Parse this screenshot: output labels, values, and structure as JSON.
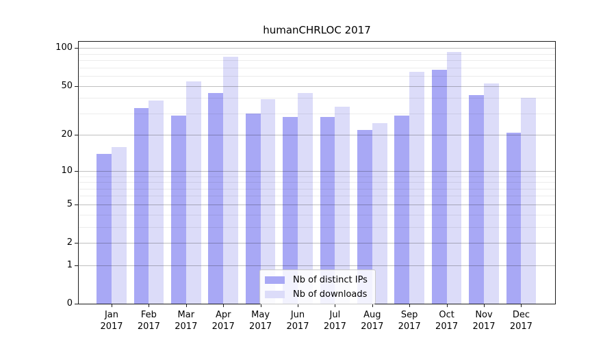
{
  "chart_data": {
    "type": "bar",
    "title": "humanCHRLOC 2017",
    "categories": [
      "Jan 2017",
      "Feb 2017",
      "Mar 2017",
      "Apr 2017",
      "May 2017",
      "Jun 2017",
      "Jul 2017",
      "Aug 2017",
      "Sep 2017",
      "Oct 2017",
      "Nov 2017",
      "Dec 2017"
    ],
    "series": [
      {
        "name": "Nb of distinct IPs",
        "color": "#a8a8f5",
        "values": [
          14,
          33,
          29,
          44,
          30,
          28,
          28,
          22,
          29,
          67,
          42,
          21
        ]
      },
      {
        "name": "Nb of downloads",
        "color": "#dcdcf9",
        "values": [
          16,
          38,
          54,
          85,
          39,
          44,
          34,
          25,
          65,
          93,
          52,
          40
        ]
      }
    ],
    "xlabel": "",
    "ylabel": "",
    "yscale": "log1p",
    "ylim": [
      0,
      110
    ],
    "y_major_ticks": [
      0,
      1,
      2,
      5,
      10,
      20,
      50,
      100
    ],
    "y_minor_gridlines": [
      3,
      4,
      6,
      7,
      8,
      9,
      30,
      40,
      60,
      70,
      80,
      90
    ],
    "grid": true,
    "legend_position": "lower center inside",
    "background_color": "#ffffff",
    "axis_color": "#1a1a1a"
  }
}
